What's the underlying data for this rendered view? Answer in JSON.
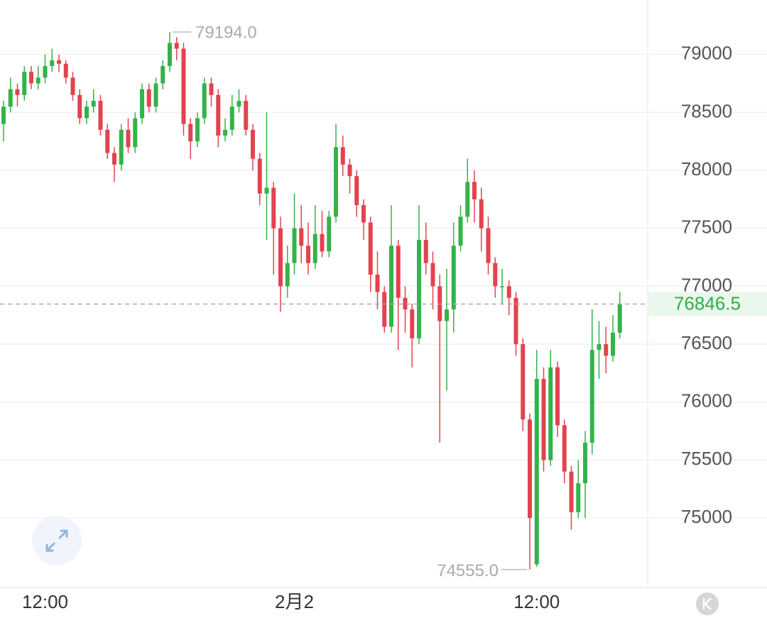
{
  "chart_data": {
    "type": "candlestick",
    "ylim": [
      74400,
      79470
    ],
    "yticks": [
      75000,
      75500,
      76000,
      76500,
      77000,
      77500,
      78000,
      78500,
      79000
    ],
    "grid": true,
    "up_color": "#33b34a",
    "down_color": "#e2434f",
    "categories": [
      null,
      null,
      null,
      null,
      null,
      null,
      "12:00",
      null,
      null,
      null,
      null,
      null,
      null,
      null,
      null,
      null,
      null,
      null,
      null,
      null,
      null,
      null,
      null,
      null,
      null,
      null,
      null,
      null,
      null,
      null,
      null,
      null,
      null,
      null,
      null,
      null,
      null,
      null,
      null,
      null,
      null,
      null,
      "2月2",
      null,
      null,
      null,
      null,
      null,
      null,
      null,
      null,
      null,
      null,
      null,
      null,
      null,
      null,
      null,
      null,
      null,
      null,
      null,
      null,
      null,
      null,
      null,
      null,
      null,
      null,
      null,
      null,
      null,
      null,
      null,
      null,
      null,
      null,
      "12:00",
      null,
      null,
      null,
      null,
      null,
      null,
      null,
      null,
      null,
      null,
      null,
      null
    ],
    "ohlc": [
      [
        78400,
        78600,
        78250,
        78550
      ],
      [
        78550,
        78800,
        78500,
        78700
      ],
      [
        78700,
        78750,
        78550,
        78650
      ],
      [
        78650,
        78900,
        78600,
        78850
      ],
      [
        78850,
        78900,
        78700,
        78750
      ],
      [
        78750,
        78900,
        78700,
        78800
      ],
      [
        78800,
        79000,
        78750,
        78900
      ],
      [
        78900,
        79050,
        78850,
        78950
      ],
      [
        78950,
        79000,
        78850,
        78920
      ],
      [
        78920,
        78950,
        78750,
        78800
      ],
      [
        78800,
        78850,
        78600,
        78650
      ],
      [
        78650,
        78700,
        78400,
        78450
      ],
      [
        78450,
        78600,
        78400,
        78550
      ],
      [
        78550,
        78700,
        78500,
        78600
      ],
      [
        78600,
        78650,
        78300,
        78350
      ],
      [
        78350,
        78400,
        78100,
        78150
      ],
      [
        78150,
        78200,
        77900,
        78050
      ],
      [
        78050,
        78400,
        78000,
        78350
      ],
      [
        78350,
        78450,
        78150,
        78200
      ],
      [
        78200,
        78500,
        78150,
        78450
      ],
      [
        78450,
        78750,
        78400,
        78700
      ],
      [
        78700,
        78750,
        78500,
        78550
      ],
      [
        78550,
        78800,
        78500,
        78750
      ],
      [
        78750,
        78950,
        78700,
        78900
      ],
      [
        78900,
        79194,
        78850,
        79100
      ],
      [
        79100,
        79150,
        78950,
        79050
      ],
      [
        79050,
        79100,
        78300,
        78400
      ],
      [
        78400,
        78450,
        78100,
        78250
      ],
      [
        78250,
        78500,
        78200,
        78450
      ],
      [
        78450,
        78800,
        78400,
        78750
      ],
      [
        78750,
        78800,
        78550,
        78650
      ],
      [
        78650,
        78700,
        78200,
        78300
      ],
      [
        78300,
        78450,
        78250,
        78350
      ],
      [
        78350,
        78650,
        78300,
        78550
      ],
      [
        78550,
        78700,
        78500,
        78600
      ],
      [
        78600,
        78650,
        78300,
        78350
      ],
      [
        78350,
        78400,
        78000,
        78100
      ],
      [
        78100,
        78150,
        77700,
        77800
      ],
      [
        77800,
        78500,
        77400,
        77850
      ],
      [
        77850,
        77900,
        77100,
        77500
      ],
      [
        77500,
        77600,
        76780,
        77000
      ],
      [
        77000,
        77350,
        76900,
        77200
      ],
      [
        77200,
        77800,
        77100,
        77500
      ],
      [
        77500,
        77700,
        77200,
        77350
      ],
      [
        77350,
        77550,
        77100,
        77200
      ],
      [
        77200,
        77700,
        77150,
        77450
      ],
      [
        77450,
        77650,
        77250,
        77300
      ],
      [
        77300,
        77650,
        77250,
        77600
      ],
      [
        77600,
        78400,
        77550,
        78200
      ],
      [
        78200,
        78300,
        77950,
        78050
      ],
      [
        78050,
        78100,
        77800,
        77950
      ],
      [
        77950,
        78000,
        77600,
        77700
      ],
      [
        77700,
        77750,
        77400,
        77550
      ],
      [
        77550,
        77600,
        76950,
        77100
      ],
      [
        77100,
        77300,
        76800,
        76950
      ],
      [
        76950,
        77000,
        76600,
        76650
      ],
      [
        76650,
        77700,
        76600,
        77350
      ],
      [
        77350,
        77400,
        76450,
        76900
      ],
      [
        76900,
        77000,
        76600,
        76800
      ],
      [
        76800,
        76850,
        76300,
        76550
      ],
      [
        76550,
        77700,
        76500,
        77400
      ],
      [
        77400,
        77550,
        77100,
        77200
      ],
      [
        77200,
        77300,
        76800,
        77000
      ],
      [
        77000,
        77100,
        75650,
        76700
      ],
      [
        76700,
        77150,
        76100,
        76800
      ],
      [
        76800,
        77550,
        76600,
        77350
      ],
      [
        77350,
        77700,
        77300,
        77600
      ],
      [
        77600,
        78100,
        77550,
        77900
      ],
      [
        77900,
        78000,
        77550,
        77750
      ],
      [
        77750,
        77850,
        77300,
        77500
      ],
      [
        77500,
        77600,
        77100,
        77200
      ],
      [
        77200,
        77250,
        76900,
        77000
      ],
      [
        77000,
        77150,
        76850,
        77000
      ],
      [
        77000,
        77050,
        76750,
        76900
      ],
      [
        76900,
        76950,
        76400,
        76500
      ],
      [
        76500,
        76550,
        75750,
        75850
      ],
      [
        75850,
        75900,
        74555,
        75000
      ],
      [
        74600,
        76450,
        74580,
        76200
      ],
      [
        76200,
        76300,
        75400,
        75500
      ],
      [
        75500,
        76450,
        75450,
        76300
      ],
      [
        76300,
        76350,
        75700,
        75800
      ],
      [
        75800,
        75850,
        75300,
        75400
      ],
      [
        75400,
        75450,
        74900,
        75050
      ],
      [
        75050,
        75500,
        75000,
        75300
      ],
      [
        75300,
        75750,
        75000,
        75650
      ],
      [
        75650,
        76800,
        75550,
        76450
      ],
      [
        76450,
        76700,
        76200,
        76500
      ],
      [
        76500,
        76650,
        76250,
        76400
      ],
      [
        76400,
        76750,
        76350,
        76600
      ],
      [
        76600,
        76950,
        76550,
        76846.5
      ]
    ],
    "high_label": "79194.0",
    "low_label": "74555.0",
    "last_price_label": "76846.5"
  }
}
